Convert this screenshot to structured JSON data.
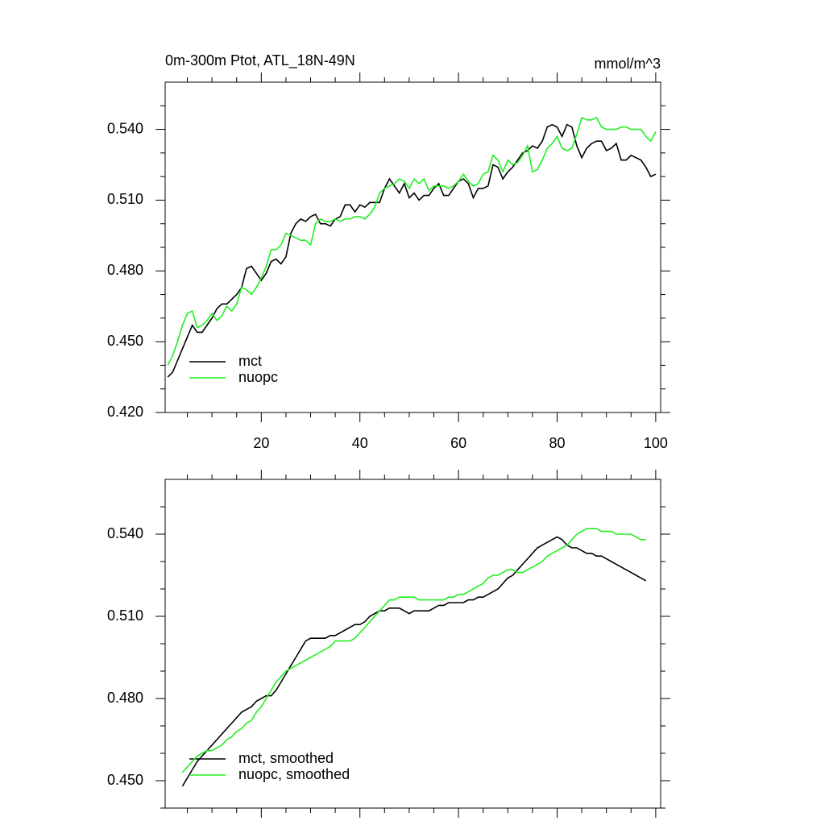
{
  "chart_data": [
    {
      "type": "line",
      "title": "0m-300m Ptot, ATL_18N-49N",
      "units": "mmol/m^3",
      "x": [
        1,
        2,
        3,
        4,
        5,
        6,
        7,
        8,
        9,
        10,
        11,
        12,
        13,
        14,
        15,
        16,
        17,
        18,
        19,
        20,
        21,
        22,
        23,
        24,
        25,
        26,
        27,
        28,
        29,
        30,
        31,
        32,
        33,
        34,
        35,
        36,
        37,
        38,
        39,
        40,
        41,
        42,
        43,
        44,
        45,
        46,
        47,
        48,
        49,
        50,
        51,
        52,
        53,
        54,
        55,
        56,
        57,
        58,
        59,
        60,
        61,
        62,
        63,
        64,
        65,
        66,
        67,
        68,
        69,
        70,
        71,
        72,
        73,
        74,
        75,
        76,
        77,
        78,
        79,
        80,
        81,
        82,
        83,
        84,
        85,
        86,
        87,
        88,
        89,
        90,
        91,
        92,
        93,
        94,
        95,
        96,
        97,
        98,
        99,
        100
      ],
      "series": [
        {
          "name": "mct",
          "color": "#000000",
          "values": [
            0.435,
            0.437,
            0.442,
            0.447,
            0.452,
            0.457,
            0.454,
            0.454,
            0.457,
            0.46,
            0.464,
            0.466,
            0.466,
            0.468,
            0.47,
            0.473,
            0.481,
            0.482,
            0.479,
            0.476,
            0.479,
            0.484,
            0.485,
            0.483,
            0.486,
            0.496,
            0.5,
            0.502,
            0.501,
            0.503,
            0.504,
            0.5,
            0.5,
            0.499,
            0.502,
            0.503,
            0.508,
            0.508,
            0.505,
            0.508,
            0.507,
            0.509,
            0.509,
            0.509,
            0.515,
            0.519,
            0.516,
            0.513,
            0.517,
            0.511,
            0.513,
            0.51,
            0.512,
            0.512,
            0.515,
            0.517,
            0.512,
            0.512,
            0.515,
            0.518,
            0.519,
            0.517,
            0.511,
            0.515,
            0.515,
            0.516,
            0.525,
            0.524,
            0.519,
            0.522,
            0.524,
            0.527,
            0.53,
            0.531,
            0.533,
            0.532,
            0.535,
            0.541,
            0.542,
            0.541,
            0.537,
            0.542,
            0.541,
            0.533,
            0.528,
            0.532,
            0.534,
            0.535,
            0.535,
            0.531,
            0.532,
            0.534,
            0.527,
            0.527,
            0.529,
            0.528,
            0.527,
            0.524,
            0.52,
            0.521
          ]
        },
        {
          "name": "nuopc",
          "color": "#22ee22",
          "values": [
            0.44,
            0.444,
            0.45,
            0.457,
            0.462,
            0.463,
            0.456,
            0.457,
            0.459,
            0.462,
            0.459,
            0.461,
            0.465,
            0.463,
            0.466,
            0.473,
            0.472,
            0.47,
            0.473,
            0.477,
            0.482,
            0.489,
            0.489,
            0.491,
            0.496,
            0.495,
            0.494,
            0.493,
            0.493,
            0.491,
            0.5,
            0.502,
            0.501,
            0.501,
            0.502,
            0.501,
            0.502,
            0.502,
            0.503,
            0.503,
            0.502,
            0.504,
            0.507,
            0.513,
            0.515,
            0.516,
            0.517,
            0.519,
            0.518,
            0.515,
            0.519,
            0.517,
            0.519,
            0.514,
            0.516,
            0.516,
            0.516,
            0.515,
            0.516,
            0.518,
            0.521,
            0.518,
            0.516,
            0.517,
            0.521,
            0.522,
            0.529,
            0.527,
            0.522,
            0.527,
            0.525,
            0.526,
            0.529,
            0.533,
            0.522,
            0.523,
            0.527,
            0.532,
            0.534,
            0.537,
            0.532,
            0.531,
            0.532,
            0.538,
            0.545,
            0.544,
            0.544,
            0.545,
            0.541,
            0.54,
            0.54,
            0.54,
            0.541,
            0.541,
            0.54,
            0.54,
            0.54,
            0.537,
            0.535,
            0.539
          ]
        }
      ],
      "xlim": [
        0.5,
        101
      ],
      "xticks": [
        20,
        40,
        60,
        80,
        100
      ],
      "xticks_minor": [
        5,
        10,
        15,
        25,
        30,
        35,
        45,
        50,
        55,
        65,
        70,
        75,
        85,
        90,
        95
      ],
      "xtick_labels": true,
      "ylim": [
        0.42,
        0.56
      ],
      "yticks": [
        {
          "value": 0.42,
          "label": "0.420"
        },
        {
          "value": 0.45,
          "label": "0.450"
        },
        {
          "value": 0.48,
          "label": "0.480"
        },
        {
          "value": 0.51,
          "label": "0.510"
        },
        {
          "value": 0.54,
          "label": "0.540"
        }
      ],
      "yticks_minor": [
        0.43,
        0.44,
        0.46,
        0.47,
        0.49,
        0.5,
        0.52,
        0.53,
        0.55
      ],
      "legend": "lower left"
    },
    {
      "type": "line",
      "x": [
        4,
        5,
        6,
        7,
        8,
        9,
        10,
        11,
        12,
        13,
        14,
        15,
        16,
        17,
        18,
        19,
        20,
        21,
        22,
        23,
        24,
        25,
        26,
        27,
        28,
        29,
        30,
        31,
        32,
        33,
        34,
        35,
        36,
        37,
        38,
        39,
        40,
        41,
        42,
        43,
        44,
        45,
        46,
        47,
        48,
        49,
        50,
        51,
        52,
        53,
        54,
        55,
        56,
        57,
        58,
        59,
        60,
        61,
        62,
        63,
        64,
        65,
        66,
        67,
        68,
        69,
        70,
        71,
        72,
        73,
        74,
        75,
        76,
        77,
        78,
        79,
        80,
        81,
        82,
        83,
        84,
        85,
        86,
        87,
        88,
        89,
        90,
        91,
        92,
        93,
        94,
        95,
        96,
        97,
        98
      ],
      "series": [
        {
          "name": "mct, smoothed",
          "color": "#000000",
          "values": [
            0.448,
            0.451,
            0.454,
            0.457,
            0.459,
            0.461,
            0.463,
            0.465,
            0.467,
            0.469,
            0.471,
            0.473,
            0.475,
            0.476,
            0.477,
            0.479,
            0.48,
            0.481,
            0.481,
            0.483,
            0.486,
            0.489,
            0.492,
            0.495,
            0.498,
            0.501,
            0.502,
            0.502,
            0.502,
            0.502,
            0.503,
            0.503,
            0.504,
            0.505,
            0.506,
            0.507,
            0.507,
            0.508,
            0.51,
            0.511,
            0.512,
            0.512,
            0.513,
            0.513,
            0.513,
            0.512,
            0.511,
            0.512,
            0.512,
            0.512,
            0.512,
            0.513,
            0.514,
            0.514,
            0.515,
            0.515,
            0.515,
            0.515,
            0.516,
            0.516,
            0.517,
            0.517,
            0.518,
            0.519,
            0.52,
            0.522,
            0.524,
            0.525,
            0.527,
            0.529,
            0.531,
            0.533,
            0.535,
            0.536,
            0.537,
            0.538,
            0.539,
            0.538,
            0.536,
            0.535,
            0.535,
            0.534,
            0.533,
            0.533,
            0.532,
            0.532,
            0.531,
            0.53,
            0.529,
            0.528,
            0.527,
            0.526,
            0.525,
            0.524,
            0.523
          ]
        },
        {
          "name": "nuopc, smoothed",
          "color": "#22ee22",
          "values": [
            0.453,
            0.455,
            0.457,
            0.459,
            0.46,
            0.461,
            0.461,
            0.462,
            0.463,
            0.465,
            0.466,
            0.468,
            0.469,
            0.471,
            0.472,
            0.475,
            0.477,
            0.48,
            0.483,
            0.486,
            0.488,
            0.49,
            0.491,
            0.492,
            0.493,
            0.494,
            0.495,
            0.496,
            0.497,
            0.498,
            0.499,
            0.501,
            0.501,
            0.501,
            0.501,
            0.502,
            0.504,
            0.506,
            0.508,
            0.51,
            0.512,
            0.514,
            0.516,
            0.516,
            0.517,
            0.517,
            0.517,
            0.517,
            0.516,
            0.516,
            0.516,
            0.516,
            0.516,
            0.516,
            0.517,
            0.517,
            0.518,
            0.518,
            0.519,
            0.52,
            0.521,
            0.522,
            0.524,
            0.525,
            0.525,
            0.526,
            0.527,
            0.527,
            0.526,
            0.526,
            0.527,
            0.528,
            0.529,
            0.53,
            0.532,
            0.533,
            0.534,
            0.535,
            0.536,
            0.538,
            0.54,
            0.541,
            0.542,
            0.542,
            0.542,
            0.541,
            0.541,
            0.541,
            0.54,
            0.54,
            0.54,
            0.54,
            0.539,
            0.538,
            0.538
          ]
        }
      ],
      "xlim": [
        0.5,
        101
      ],
      "xticks": [
        20,
        40,
        60,
        80,
        100
      ],
      "xticks_minor": [
        5,
        10,
        15,
        25,
        30,
        35,
        45,
        50,
        55,
        65,
        70,
        75,
        85,
        90,
        95
      ],
      "xtick_labels": false,
      "ylim": [
        0.44,
        0.56
      ],
      "yticks": [
        {
          "value": 0.45,
          "label": "0.450"
        },
        {
          "value": 0.48,
          "label": "0.480"
        },
        {
          "value": 0.51,
          "label": "0.510"
        },
        {
          "value": 0.54,
          "label": "0.540"
        }
      ],
      "yticks_minor": [
        0.44,
        0.46,
        0.47,
        0.49,
        0.5,
        0.52,
        0.53,
        0.55
      ],
      "legend": "lower left"
    }
  ]
}
